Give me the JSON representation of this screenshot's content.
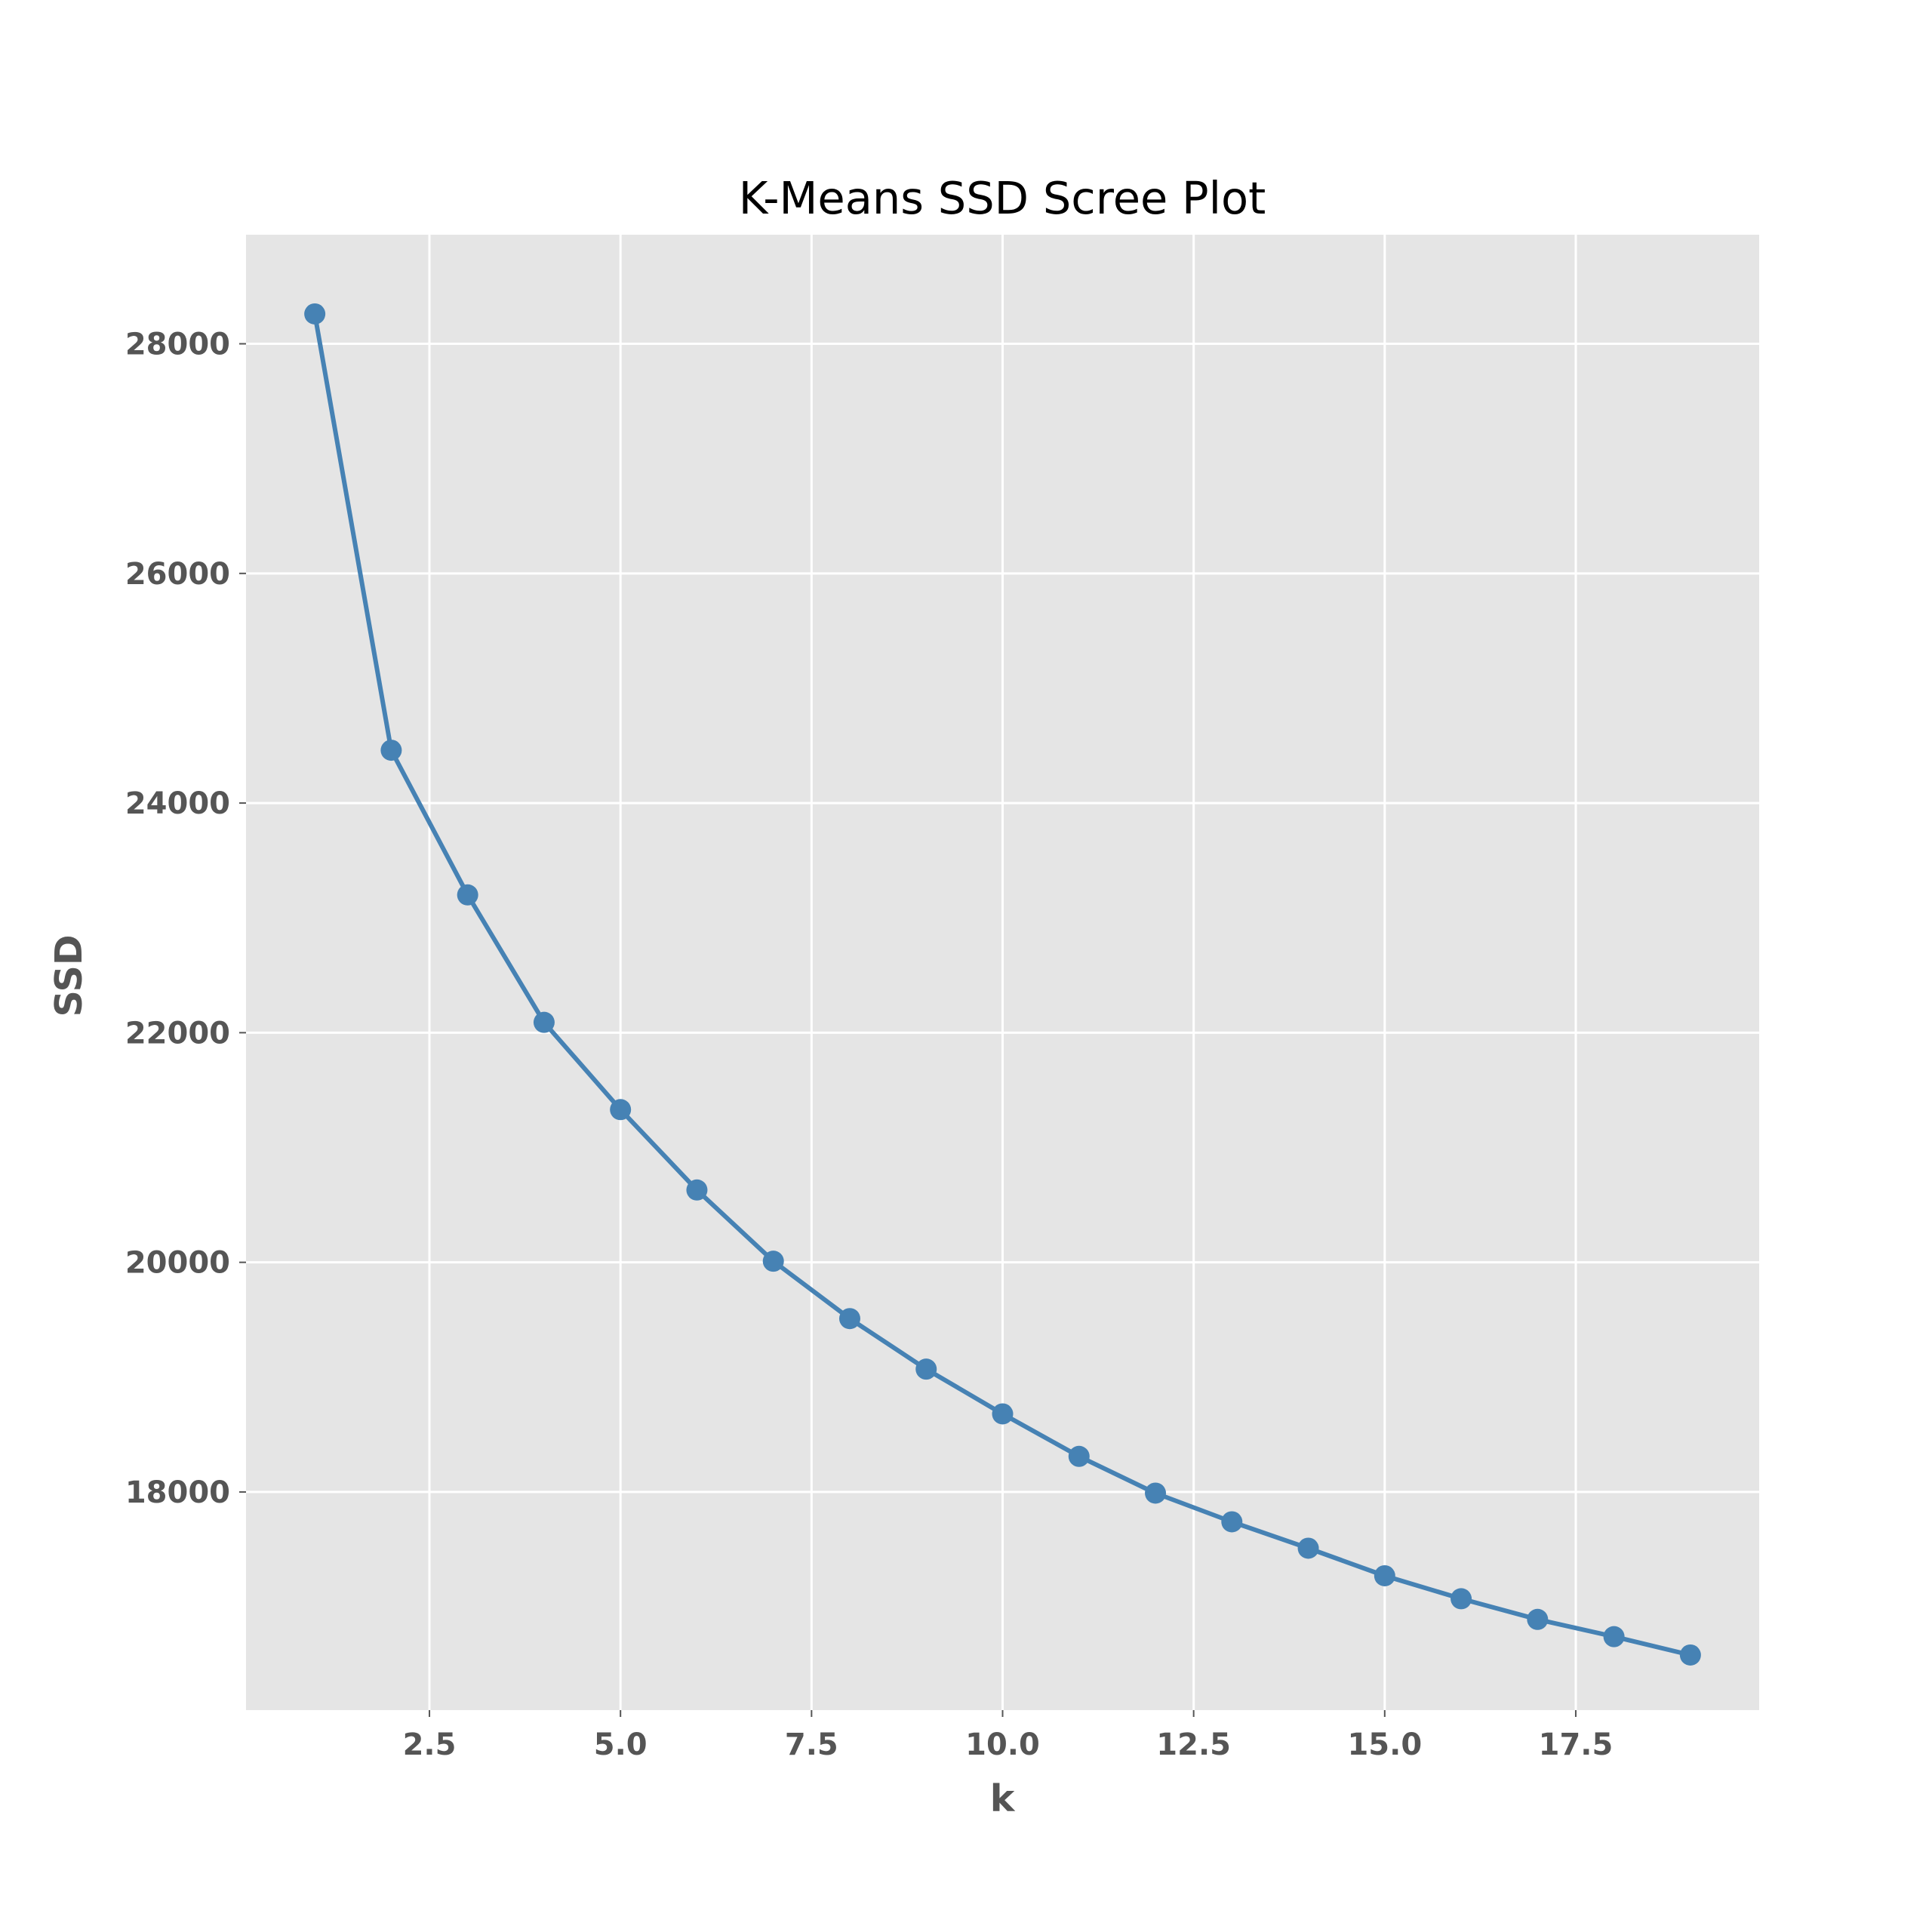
{
  "chart_data": {
    "type": "line",
    "title": "K-Means SSD Scree Plot",
    "xlabel": "k",
    "ylabel": "SSD",
    "x": [
      1,
      2,
      3,
      4,
      5,
      6,
      7,
      8,
      9,
      10,
      11,
      12,
      13,
      14,
      15,
      16,
      17,
      18,
      19
    ],
    "series": [
      {
        "values": [
          28260,
          24460,
          23200,
          22090,
          21330,
          20630,
          20010,
          19510,
          19070,
          18680,
          18310,
          17990,
          17740,
          17510,
          17270,
          17070,
          16890,
          16740,
          16580
        ]
      }
    ],
    "xlim": [
      0.1,
      19.9
    ],
    "ylim": [
      16100,
      28950
    ],
    "xticks": [
      2.5,
      5.0,
      7.5,
      10.0,
      12.5,
      15.0,
      17.5
    ],
    "xtick_labels": [
      "2.5",
      "5.0",
      "7.5",
      "10.0",
      "12.5",
      "15.0",
      "17.5"
    ],
    "yticks": [
      18000,
      20000,
      22000,
      24000,
      26000,
      28000
    ],
    "ytick_labels": [
      "18000",
      "20000",
      "22000",
      "24000",
      "26000",
      "28000"
    ],
    "grid": true,
    "legend": "none",
    "colors": {
      "line": "#4682b4",
      "plot_background": "#e5e5e5",
      "grid": "#ffffff",
      "tick_text": "#555555",
      "title_text": "#000000"
    }
  }
}
